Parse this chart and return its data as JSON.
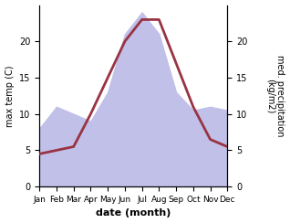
{
  "months": [
    "Jan",
    "Feb",
    "Mar",
    "Apr",
    "May",
    "Jun",
    "Jul",
    "Aug",
    "Sep",
    "Oct",
    "Nov",
    "Dec"
  ],
  "temperature": [
    4.5,
    5.0,
    5.5,
    10.0,
    15.0,
    20.0,
    23.0,
    23.0,
    17.0,
    11.0,
    6.5,
    5.5
  ],
  "precipitation": [
    8.0,
    11.0,
    10.0,
    9.0,
    13.0,
    21.0,
    24.0,
    21.0,
    13.0,
    10.5,
    11.0,
    10.5
  ],
  "temp_color": "#993344",
  "precip_fill_color": "#c0c0e8",
  "xlabel": "date (month)",
  "ylabel_left": "max temp (C)",
  "ylabel_right": "med. precipitation\n(kg/m2)",
  "ylim_left": [
    0,
    25
  ],
  "ylim_right": [
    0,
    25
  ],
  "precip_scale": 1.0,
  "background_color": "#ffffff",
  "tick_fontsize": 7,
  "label_fontsize": 7,
  "xlabel_fontsize": 8
}
